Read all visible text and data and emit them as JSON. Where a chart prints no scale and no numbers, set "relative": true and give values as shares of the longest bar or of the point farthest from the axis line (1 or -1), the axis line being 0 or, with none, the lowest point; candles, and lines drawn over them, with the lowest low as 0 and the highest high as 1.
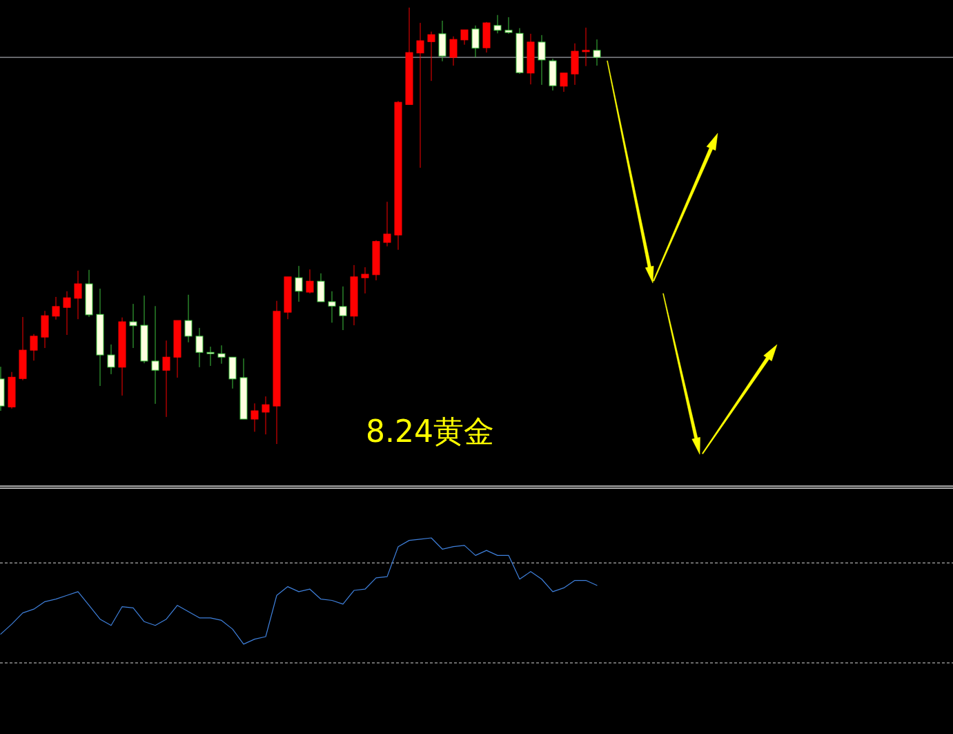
{
  "chart_data": [
    {
      "type": "candlestick",
      "title": "8.24黄金",
      "relative": true,
      "categories": [
        null,
        null,
        null,
        null,
        null,
        null,
        null,
        null,
        null,
        null,
        null,
        null,
        null,
        null,
        null,
        null,
        null,
        null,
        null,
        null,
        null,
        null,
        null,
        null,
        null,
        null,
        null,
        null,
        null,
        null,
        null,
        null,
        null,
        null,
        null,
        null,
        null,
        null,
        null,
        null,
        null,
        null,
        null,
        null,
        null,
        null,
        null,
        null,
        null,
        null,
        null,
        null,
        null,
        null,
        null
      ],
      "ohlc": [
        [
          0.149,
          0.177,
          0.076,
          0.087
        ],
        [
          0.085,
          0.165,
          0.081,
          0.153
        ],
        [
          0.15,
          0.291,
          0.146,
          0.215
        ],
        [
          0.215,
          0.252,
          0.191,
          0.247
        ],
        [
          0.245,
          0.305,
          0.22,
          0.294
        ],
        [
          0.293,
          0.337,
          0.285,
          0.315
        ],
        [
          0.313,
          0.35,
          0.25,
          0.335
        ],
        [
          0.334,
          0.397,
          0.286,
          0.367
        ],
        [
          0.367,
          0.399,
          0.291,
          0.296
        ],
        [
          0.297,
          0.356,
          0.133,
          0.204
        ],
        [
          0.204,
          0.228,
          0.16,
          0.176
        ],
        [
          0.176,
          0.29,
          0.111,
          0.28
        ],
        [
          0.28,
          0.321,
          0.22,
          0.271
        ],
        [
          0.272,
          0.34,
          0.185,
          0.19
        ],
        [
          0.19,
          0.316,
          0.092,
          0.169
        ],
        [
          0.169,
          0.237,
          0.062,
          0.199
        ],
        [
          0.199,
          0.283,
          0.152,
          0.283
        ],
        [
          0.283,
          0.342,
          0.233,
          0.247
        ],
        [
          0.247,
          0.266,
          0.176,
          0.21
        ],
        [
          0.21,
          0.223,
          0.179,
          0.207
        ],
        [
          0.207,
          0.226,
          0.184,
          0.199
        ],
        [
          0.199,
          0.199,
          0.127,
          0.149
        ],
        [
          0.152,
          0.196,
          0.057,
          0.057
        ],
        [
          0.057,
          0.093,
          0.028,
          0.076
        ],
        [
          0.073,
          0.109,
          0.022,
          0.09
        ],
        [
          0.087,
          0.328,
          0,
          0.304
        ],
        [
          0.302,
          0.383,
          0.286,
          0.383
        ],
        [
          0.381,
          0.408,
          0.326,
          0.35
        ],
        [
          0.348,
          0.4,
          0.345,
          0.373
        ],
        [
          0.373,
          0.391,
          0.326,
          0.326
        ],
        [
          0.326,
          0.35,
          0.278,
          0.316
        ],
        [
          0.315,
          0.361,
          0.261,
          0.294
        ],
        [
          0.293,
          0.41,
          0.272,
          0.383
        ],
        [
          0.381,
          0.405,
          0.345,
          0.389
        ],
        [
          0.388,
          0.467,
          0.375,
          0.464
        ],
        [
          0.462,
          0.555,
          0.453,
          0.481
        ],
        [
          0.479,
          0.786,
          0.445,
          0.783
        ],
        [
          0.778,
          1,
          0.778,
          0.897
        ],
        [
          0.896,
          0.965,
          0.633,
          0.924
        ],
        [
          0.922,
          0.945,
          0.832,
          0.938
        ],
        [
          0.94,
          0.97,
          0.877,
          0.889
        ],
        [
          0.886,
          0.934,
          0.867,
          0.927
        ],
        [
          0.926,
          0.949,
          0.915,
          0.949
        ],
        [
          0.951,
          0.959,
          0.886,
          0.907
        ],
        [
          0.908,
          0.967,
          0.897,
          0.965
        ],
        [
          0.959,
          0.983,
          0.941,
          0.948
        ],
        [
          0.948,
          0.978,
          0.94,
          0.943
        ],
        [
          0.941,
          0.953,
          0.848,
          0.851
        ],
        [
          0.85,
          0.94,
          0.824,
          0.921
        ],
        [
          0.921,
          0.937,
          0.823,
          0.88
        ],
        [
          0.878,
          0.883,
          0.81,
          0.821
        ],
        [
          0.82,
          0.85,
          0.807,
          0.85
        ],
        [
          0.848,
          0.918,
          0.823,
          0.9
        ],
        [
          0.899,
          0.954,
          0.866,
          0.902
        ],
        [
          0.902,
          0.927,
          0.867,
          0.886
        ]
      ],
      "colors": [
        "#ffffe0",
        "#ff0000",
        "#ff0000",
        "#ff0000",
        "#ff0000",
        "#ff0000",
        "#ff0000",
        "#ff0000",
        "#ffffe0",
        "#ffffe0",
        "#ffffe0",
        "#ff0000",
        "#ffffe0",
        "#ffffe0",
        "#ffffe0",
        "#ff0000",
        "#ff0000",
        "#ffffe0",
        "#ffffe0",
        "#ffffe0",
        "#ffffe0",
        "#ffffe0",
        "#ffffe0",
        "#ff0000",
        "#ff0000",
        "#ff0000",
        "#ff0000",
        "#ffffe0",
        "#ff0000",
        "#ffffe0",
        "#ffffe0",
        "#ffffe0",
        "#ff0000",
        "#ff0000",
        "#ff0000",
        "#ff0000",
        "#ff0000",
        "#ff0000",
        "#ff0000",
        "#ff0000",
        "#ffffe0",
        "#ff0000",
        "#ff0000",
        "#ffffe0",
        "#ff0000",
        "#ffffe0",
        "#ffffe0",
        "#ffffe0",
        "#ff0000",
        "#ffffe0",
        "#ffffe0",
        "#ff0000",
        "#ff0000",
        "#ff0000",
        "#ffffe0"
      ],
      "ref_lines": [
        {
          "axis": "y",
          "value": 0.886,
          "color": "#c8ccd4"
        }
      ]
    },
    {
      "type": "line",
      "relative": true,
      "color": "#3f80dc",
      "categories": [
        null,
        null,
        null,
        null,
        null,
        null,
        null,
        null,
        null,
        null,
        null,
        null,
        null,
        null,
        null,
        null,
        null,
        null,
        null,
        null,
        null,
        null,
        null,
        null,
        null,
        null,
        null,
        null,
        null,
        null,
        null,
        null,
        null,
        null,
        null,
        null,
        null,
        null,
        null,
        null,
        null,
        null,
        null,
        null,
        null,
        null,
        null,
        null,
        null,
        null,
        null,
        null,
        null,
        null,
        null
      ],
      "values": [
        0.23,
        0.31,
        0.4,
        0.43,
        0.49,
        0.51,
        0.54,
        0.57,
        0.46,
        0.35,
        0.3,
        0.45,
        0.44,
        0.33,
        0.3,
        0.35,
        0.46,
        0.41,
        0.36,
        0.36,
        0.34,
        0.27,
        0.15,
        0.19,
        0.21,
        0.54,
        0.61,
        0.57,
        0.59,
        0.51,
        0.5,
        0.47,
        0.58,
        0.59,
        0.68,
        0.69,
        0.93,
        0.98,
        0.99,
        1,
        0.91,
        0.93,
        0.94,
        0.86,
        0.9,
        0.86,
        0.86,
        0.67,
        0.73,
        0.67,
        0.57,
        0.6,
        0.66,
        0.66,
        0.62
      ],
      "ref_lines": [
        {
          "axis": "y",
          "value": 0.8,
          "color": "#d8d8d8",
          "line_style": "dashed"
        },
        {
          "axis": "y",
          "value": 0,
          "color": "#d8d8d8",
          "line_style": "dashed"
        }
      ]
    }
  ]
}
